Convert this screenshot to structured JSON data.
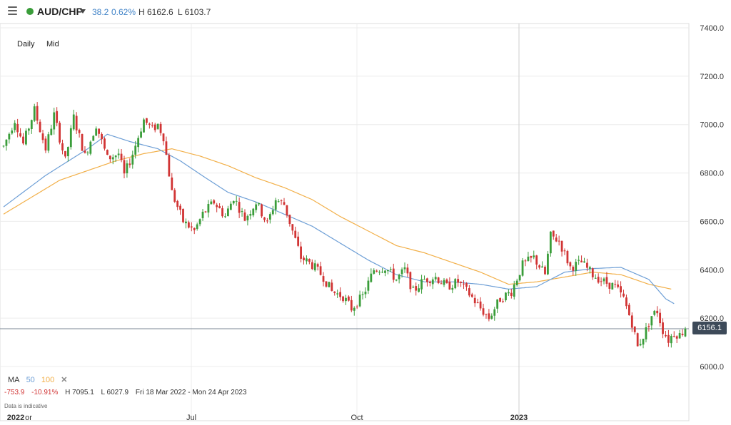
{
  "header": {
    "menu_icon": "hamburger-menu-icon",
    "status_color": "#3a9d3a",
    "symbol": "AUD/CHF",
    "change": "38.2",
    "change_pct": "0.62%",
    "high": "H 6162.6",
    "low": "L 6103.7"
  },
  "overlay": {
    "timeframe": "Daily",
    "price_type": "Mid"
  },
  "legend": {
    "ma_label": "MA",
    "ma_fast": "50",
    "ma_slow": "100",
    "close_icon": "close-icon"
  },
  "stats": {
    "change": "-753.9",
    "change_pct": "-10.91%",
    "high": "H 7095.1",
    "low": "L 6027.9",
    "range": "Fri 18 Mar 2022 - Mon 24 Apr 2023"
  },
  "disclaimer": "Data is indicative",
  "last_price": "6156.1",
  "colors": {
    "up": "#3a9d3a",
    "down": "#d13434",
    "ma50": "#6e9fd6",
    "ma100": "#f2b04a",
    "price_line": "#7b8794"
  },
  "chart_data": {
    "type": "candlestick",
    "title": "AUD/CHF",
    "ylim": [
      6000,
      7400
    ],
    "y_ticks": [
      "7400.0",
      "7200.0",
      "7000.0",
      "6800.0",
      "6600.0",
      "6400.0",
      "6200.0",
      "6000.0"
    ],
    "x_ticks": [
      "2022",
      "or",
      "Jul",
      "Oct",
      "2023"
    ],
    "last_price": 6156.1,
    "price_path": [
      [
        0,
        6910
      ],
      [
        4,
        7020
      ],
      [
        7,
        6920
      ],
      [
        11,
        7060
      ],
      [
        15,
        6900
      ],
      [
        18,
        7040
      ],
      [
        22,
        6850
      ],
      [
        25,
        7030
      ],
      [
        29,
        6870
      ],
      [
        33,
        7000
      ],
      [
        37,
        6860
      ],
      [
        41,
        6880
      ],
      [
        43,
        6790
      ],
      [
        46,
        6880
      ],
      [
        50,
        7020
      ],
      [
        53,
        6980
      ],
      [
        55,
        7000
      ],
      [
        57,
        6950
      ],
      [
        60,
        6720
      ],
      [
        64,
        6600
      ],
      [
        68,
        6560
      ],
      [
        71,
        6630
      ],
      [
        75,
        6680
      ],
      [
        79,
        6620
      ],
      [
        82,
        6700
      ],
      [
        86,
        6610
      ],
      [
        90,
        6680
      ],
      [
        94,
        6590
      ],
      [
        97,
        6690
      ],
      [
        100,
        6670
      ],
      [
        103,
        6560
      ],
      [
        106,
        6450
      ],
      [
        110,
        6420
      ],
      [
        114,
        6370
      ],
      [
        117,
        6310
      ],
      [
        121,
        6290
      ],
      [
        124,
        6240
      ],
      [
        128,
        6290
      ],
      [
        132,
        6400
      ],
      [
        136,
        6410
      ],
      [
        140,
        6360
      ],
      [
        143,
        6400
      ],
      [
        146,
        6310
      ],
      [
        150,
        6360
      ],
      [
        154,
        6370
      ],
      [
        158,
        6330
      ],
      [
        162,
        6350
      ],
      [
        166,
        6300
      ],
      [
        170,
        6240
      ],
      [
        173,
        6200
      ],
      [
        177,
        6280
      ],
      [
        181,
        6310
      ],
      [
        185,
        6420
      ],
      [
        189,
        6450
      ],
      [
        193,
        6380
      ],
      [
        195,
        6540
      ],
      [
        198,
        6520
      ],
      [
        202,
        6410
      ],
      [
        206,
        6430
      ],
      [
        210,
        6380
      ],
      [
        214,
        6350
      ],
      [
        218,
        6330
      ],
      [
        221,
        6280
      ],
      [
        224,
        6180
      ],
      [
        226,
        6080
      ],
      [
        229,
        6150
      ],
      [
        231,
        6210
      ],
      [
        233,
        6230
      ],
      [
        235,
        6150
      ],
      [
        237,
        6110
      ],
      [
        239,
        6140
      ],
      [
        241,
        6130
      ],
      [
        243,
        6156.1
      ]
    ],
    "ma50_path": [
      [
        0,
        6660
      ],
      [
        15,
        6790
      ],
      [
        30,
        6900
      ],
      [
        37,
        6960
      ],
      [
        45,
        6930
      ],
      [
        55,
        6900
      ],
      [
        63,
        6850
      ],
      [
        72,
        6780
      ],
      [
        80,
        6720
      ],
      [
        90,
        6680
      ],
      [
        100,
        6630
      ],
      [
        110,
        6580
      ],
      [
        120,
        6510
      ],
      [
        130,
        6440
      ],
      [
        140,
        6380
      ],
      [
        150,
        6350
      ],
      [
        160,
        6350
      ],
      [
        170,
        6340
      ],
      [
        180,
        6320
      ],
      [
        190,
        6330
      ],
      [
        200,
        6390
      ],
      [
        210,
        6405
      ],
      [
        220,
        6410
      ],
      [
        230,
        6360
      ],
      [
        236,
        6280
      ],
      [
        239,
        6260
      ]
    ],
    "ma100_path": [
      [
        0,
        6630
      ],
      [
        10,
        6700
      ],
      [
        20,
        6770
      ],
      [
        30,
        6810
      ],
      [
        40,
        6850
      ],
      [
        50,
        6880
      ],
      [
        60,
        6900
      ],
      [
        70,
        6870
      ],
      [
        80,
        6830
      ],
      [
        90,
        6780
      ],
      [
        100,
        6740
      ],
      [
        110,
        6690
      ],
      [
        120,
        6620
      ],
      [
        130,
        6560
      ],
      [
        140,
        6500
      ],
      [
        150,
        6470
      ],
      [
        160,
        6430
      ],
      [
        170,
        6390
      ],
      [
        180,
        6340
      ],
      [
        190,
        6350
      ],
      [
        200,
        6370
      ],
      [
        210,
        6390
      ],
      [
        220,
        6380
      ],
      [
        230,
        6340
      ],
      [
        238,
        6320
      ]
    ]
  }
}
